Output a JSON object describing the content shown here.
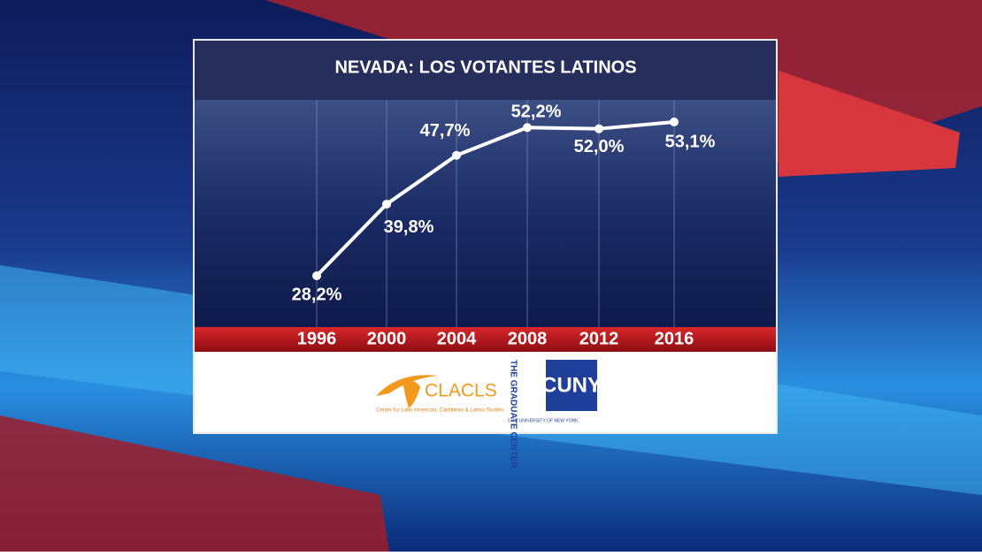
{
  "chart_data": {
    "type": "line",
    "title": "NEVADA: LOS VOTANTES LATINOS",
    "categories": [
      "1996",
      "2000",
      "2004",
      "2008",
      "2012",
      "2016"
    ],
    "values": [
      28.2,
      39.8,
      47.7,
      52.2,
      52.0,
      53.1
    ],
    "value_labels": [
      "28,2%",
      "39,8%",
      "47,7%",
      "52,2%",
      "52,0%",
      "53,1%"
    ],
    "color": "#ffffff"
  },
  "footer": {
    "clacls": {
      "name": "CLACLS",
      "full_name": "Center for Latin American, Caribbean & Latino Studies"
    },
    "graduate_center": {
      "name": "THE GRADUATE CENTER",
      "university": "CITY UNIVERSITY OF NEW YORK"
    },
    "cuny": "CUNY"
  }
}
